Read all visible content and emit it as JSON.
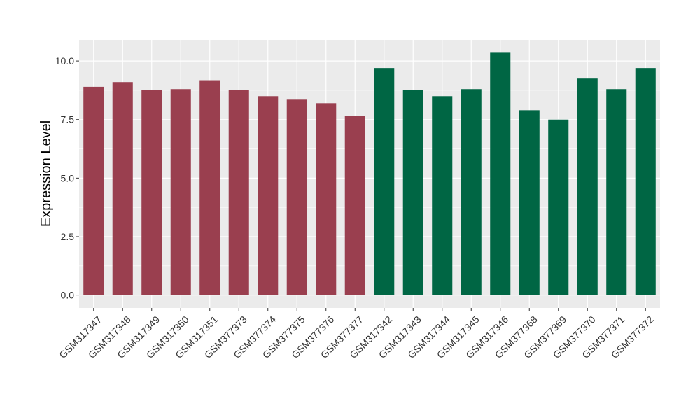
{
  "chart_data": {
    "type": "bar",
    "ylabel": "Expression Level",
    "xlabel": "",
    "ylim": [
      -0.55,
      10.9
    ],
    "yticks": [
      0.0,
      2.5,
      5.0,
      7.5,
      10.0
    ],
    "ytick_labels": [
      "0.0",
      "2.5",
      "5.0",
      "7.5",
      "10.0"
    ],
    "grid": true,
    "colors": {
      "group_a": "#9a3f4f",
      "group_b": "#006644",
      "panel": "#ebebeb",
      "gridline": "#ffffff"
    },
    "categories": [
      "GSM317347",
      "GSM317348",
      "GSM317349",
      "GSM317350",
      "GSM317351",
      "GSM377373",
      "GSM377374",
      "GSM377375",
      "GSM377376",
      "GSM377377",
      "GSM317342",
      "GSM317343",
      "GSM317344",
      "GSM317345",
      "GSM317346",
      "GSM377368",
      "GSM377369",
      "GSM377370",
      "GSM377371",
      "GSM377372"
    ],
    "values": [
      8.9,
      9.1,
      8.75,
      8.8,
      9.15,
      8.75,
      8.5,
      8.35,
      8.2,
      7.65,
      9.7,
      8.75,
      8.5,
      8.8,
      10.35,
      7.9,
      7.5,
      9.25,
      8.8,
      9.7
    ],
    "groups": [
      "a",
      "a",
      "a",
      "a",
      "a",
      "a",
      "a",
      "a",
      "a",
      "a",
      "b",
      "b",
      "b",
      "b",
      "b",
      "b",
      "b",
      "b",
      "b",
      "b"
    ]
  }
}
